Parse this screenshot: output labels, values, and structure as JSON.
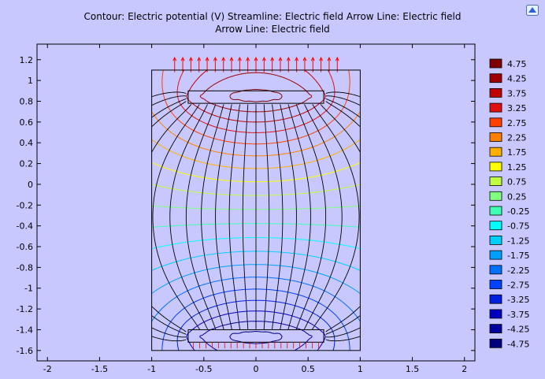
{
  "chart_data": {
    "type": "contour",
    "title_line1": "Contour: Electric potential (V)  Streamline: Electric field  Arrow Line: Electric field",
    "title_line2": "Arrow Line: Electric field",
    "xlim": [
      -2.1,
      2.1
    ],
    "ylim": [
      -1.7,
      1.35
    ],
    "x_ticks": [
      -2,
      -1.5,
      -1,
      -0.5,
      0,
      0.5,
      1,
      1.5,
      2
    ],
    "x_tick_labels": [
      "-2",
      "-1.5",
      "-1",
      "-0.5",
      "0",
      "0.5",
      "1",
      "1.5",
      "2"
    ],
    "y_ticks": [
      1.2,
      1,
      0.8,
      0.6,
      0.4,
      0.2,
      0,
      -0.2,
      -0.4,
      -0.6,
      -0.8,
      -1,
      -1.2,
      -1.4,
      -1.6
    ],
    "y_tick_labels": [
      "1.2",
      "1",
      "0.8",
      "0.6",
      "0.4",
      "0.2",
      "0",
      "-0.2",
      "-0.4",
      "-0.6",
      "-0.8",
      "-1",
      "-1.2",
      "-1.4",
      "-1.6"
    ],
    "domain_box": {
      "x": [
        -1,
        1
      ],
      "y": [
        -1.6,
        1.1
      ]
    },
    "top_electrode": {
      "x": [
        -0.65,
        0.65
      ],
      "y": [
        0.78,
        0.9
      ],
      "potential": 5
    },
    "bottom_electrode": {
      "x": [
        -0.65,
        0.65
      ],
      "y": [
        -1.52,
        -1.4
      ],
      "potential": -5
    },
    "legend": {
      "levels": [
        4.75,
        4.25,
        3.75,
        3.25,
        2.75,
        2.25,
        1.75,
        1.25,
        0.75,
        0.25,
        -0.25,
        -0.75,
        -1.25,
        -1.75,
        -2.25,
        -2.75,
        -3.25,
        -3.75,
        -4.25,
        -4.75
      ],
      "labels": [
        "4.75",
        "4.25",
        "3.75",
        "3.25",
        "2.75",
        "2.25",
        "1.75",
        "1.25",
        "0.75",
        "0.25",
        "-0.25",
        "-0.75",
        "-1.25",
        "-1.75",
        "-2.25",
        "-2.75",
        "-3.25",
        "-3.75",
        "-4.25",
        "-4.75"
      ],
      "colors": [
        "#7f0000",
        "#9f0000",
        "#c00000",
        "#e01010",
        "#ff4000",
        "#ff8000",
        "#ffb000",
        "#ffff00",
        "#c0ff40",
        "#80ff80",
        "#40ffb0",
        "#00ffff",
        "#00d0ff",
        "#00a0ff",
        "#0070ff",
        "#0040ff",
        "#0020e0",
        "#0000c0",
        "#00009f",
        "#00007f"
      ]
    },
    "arrow_color": "#ff0000",
    "streamline_color": "#000000"
  }
}
